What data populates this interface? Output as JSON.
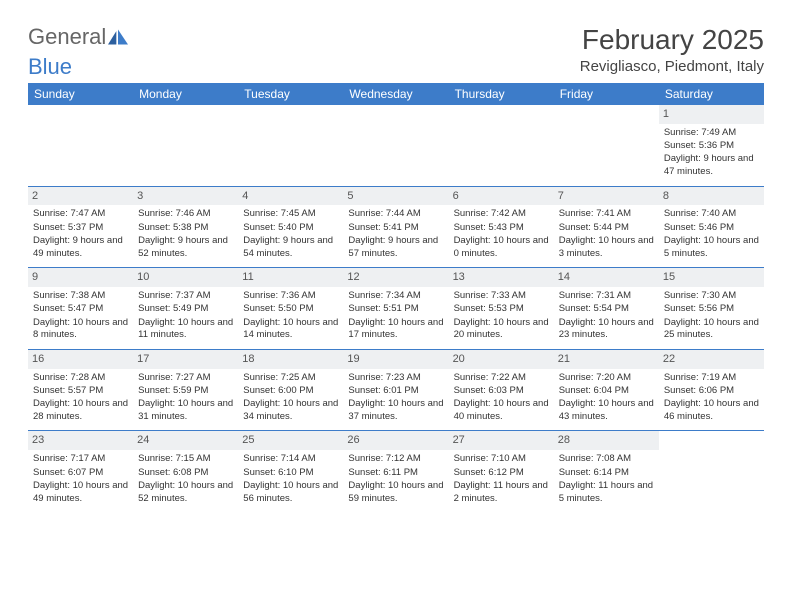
{
  "logo": {
    "text1": "General",
    "text2": "Blue"
  },
  "title": "February 2025",
  "location": "Revigliasco, Piedmont, Italy",
  "colors": {
    "header_bg": "#3d7cc9",
    "daynum_bg": "#eef0f2",
    "border": "#3d7cc9",
    "text": "#333333"
  },
  "day_names": [
    "Sunday",
    "Monday",
    "Tuesday",
    "Wednesday",
    "Thursday",
    "Friday",
    "Saturday"
  ],
  "weeks": [
    [
      null,
      null,
      null,
      null,
      null,
      null,
      {
        "n": "1",
        "sr": "7:49 AM",
        "ss": "5:36 PM",
        "dl": "9 hours and 47 minutes."
      }
    ],
    [
      {
        "n": "2",
        "sr": "7:47 AM",
        "ss": "5:37 PM",
        "dl": "9 hours and 49 minutes."
      },
      {
        "n": "3",
        "sr": "7:46 AM",
        "ss": "5:38 PM",
        "dl": "9 hours and 52 minutes."
      },
      {
        "n": "4",
        "sr": "7:45 AM",
        "ss": "5:40 PM",
        "dl": "9 hours and 54 minutes."
      },
      {
        "n": "5",
        "sr": "7:44 AM",
        "ss": "5:41 PM",
        "dl": "9 hours and 57 minutes."
      },
      {
        "n": "6",
        "sr": "7:42 AM",
        "ss": "5:43 PM",
        "dl": "10 hours and 0 minutes."
      },
      {
        "n": "7",
        "sr": "7:41 AM",
        "ss": "5:44 PM",
        "dl": "10 hours and 3 minutes."
      },
      {
        "n": "8",
        "sr": "7:40 AM",
        "ss": "5:46 PM",
        "dl": "10 hours and 5 minutes."
      }
    ],
    [
      {
        "n": "9",
        "sr": "7:38 AM",
        "ss": "5:47 PM",
        "dl": "10 hours and 8 minutes."
      },
      {
        "n": "10",
        "sr": "7:37 AM",
        "ss": "5:49 PM",
        "dl": "10 hours and 11 minutes."
      },
      {
        "n": "11",
        "sr": "7:36 AM",
        "ss": "5:50 PM",
        "dl": "10 hours and 14 minutes."
      },
      {
        "n": "12",
        "sr": "7:34 AM",
        "ss": "5:51 PM",
        "dl": "10 hours and 17 minutes."
      },
      {
        "n": "13",
        "sr": "7:33 AM",
        "ss": "5:53 PM",
        "dl": "10 hours and 20 minutes."
      },
      {
        "n": "14",
        "sr": "7:31 AM",
        "ss": "5:54 PM",
        "dl": "10 hours and 23 minutes."
      },
      {
        "n": "15",
        "sr": "7:30 AM",
        "ss": "5:56 PM",
        "dl": "10 hours and 25 minutes."
      }
    ],
    [
      {
        "n": "16",
        "sr": "7:28 AM",
        "ss": "5:57 PM",
        "dl": "10 hours and 28 minutes."
      },
      {
        "n": "17",
        "sr": "7:27 AM",
        "ss": "5:59 PM",
        "dl": "10 hours and 31 minutes."
      },
      {
        "n": "18",
        "sr": "7:25 AM",
        "ss": "6:00 PM",
        "dl": "10 hours and 34 minutes."
      },
      {
        "n": "19",
        "sr": "7:23 AM",
        "ss": "6:01 PM",
        "dl": "10 hours and 37 minutes."
      },
      {
        "n": "20",
        "sr": "7:22 AM",
        "ss": "6:03 PM",
        "dl": "10 hours and 40 minutes."
      },
      {
        "n": "21",
        "sr": "7:20 AM",
        "ss": "6:04 PM",
        "dl": "10 hours and 43 minutes."
      },
      {
        "n": "22",
        "sr": "7:19 AM",
        "ss": "6:06 PM",
        "dl": "10 hours and 46 minutes."
      }
    ],
    [
      {
        "n": "23",
        "sr": "7:17 AM",
        "ss": "6:07 PM",
        "dl": "10 hours and 49 minutes."
      },
      {
        "n": "24",
        "sr": "7:15 AM",
        "ss": "6:08 PM",
        "dl": "10 hours and 52 minutes."
      },
      {
        "n": "25",
        "sr": "7:14 AM",
        "ss": "6:10 PM",
        "dl": "10 hours and 56 minutes."
      },
      {
        "n": "26",
        "sr": "7:12 AM",
        "ss": "6:11 PM",
        "dl": "10 hours and 59 minutes."
      },
      {
        "n": "27",
        "sr": "7:10 AM",
        "ss": "6:12 PM",
        "dl": "11 hours and 2 minutes."
      },
      {
        "n": "28",
        "sr": "7:08 AM",
        "ss": "6:14 PM",
        "dl": "11 hours and 5 minutes."
      },
      null
    ]
  ],
  "labels": {
    "sunrise": "Sunrise:",
    "sunset": "Sunset:",
    "daylight": "Daylight:"
  }
}
